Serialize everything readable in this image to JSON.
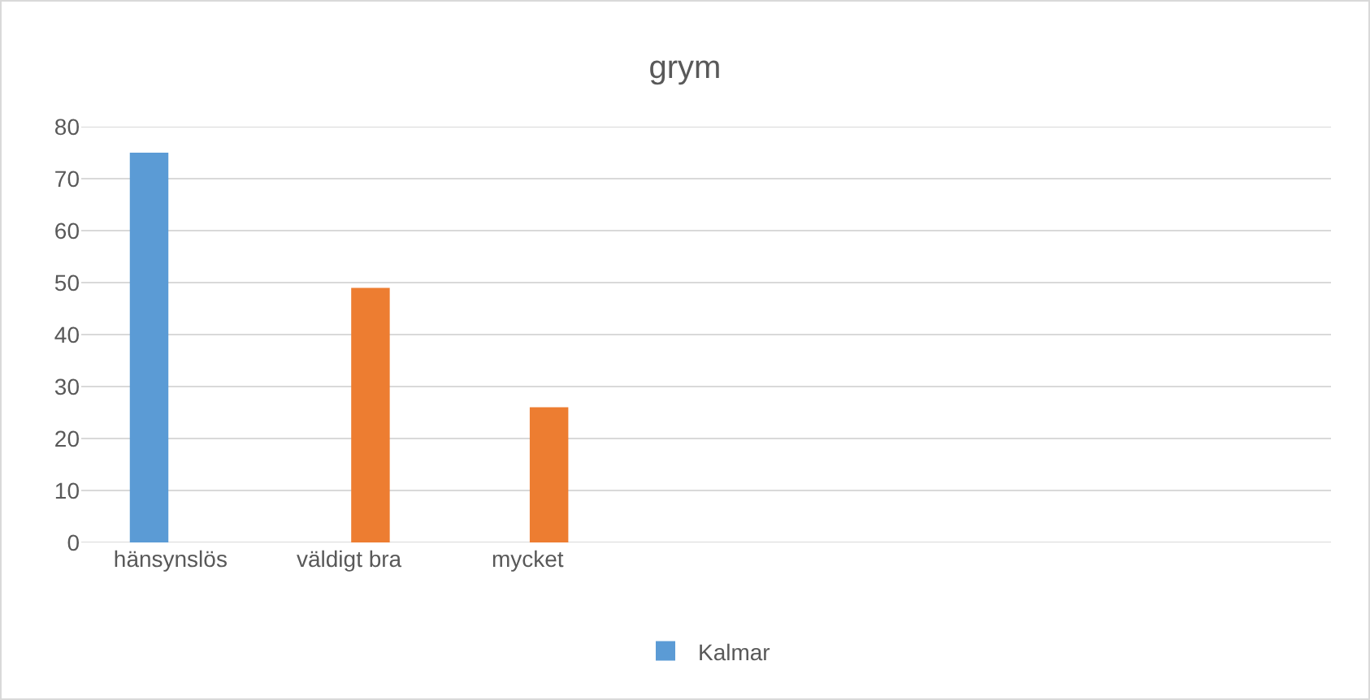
{
  "chart_data": {
    "type": "bar",
    "title": "grym",
    "categories": [
      "hänsynslös",
      "väldigt bra",
      "mycket",
      null,
      null,
      null,
      null
    ],
    "series": [
      {
        "name": "Kalmar",
        "color": "#5b9bd5",
        "values": [
          75,
          null,
          null,
          null,
          null,
          null,
          null
        ]
      },
      {
        "color": "#ed7d31",
        "values": [
          null,
          49,
          26,
          null,
          null,
          null,
          null
        ]
      }
    ],
    "ylim": [
      0,
      80
    ],
    "yticks": [
      0,
      10,
      20,
      30,
      40,
      50,
      60,
      70,
      80
    ],
    "grid": "y",
    "legend": "bottom"
  }
}
